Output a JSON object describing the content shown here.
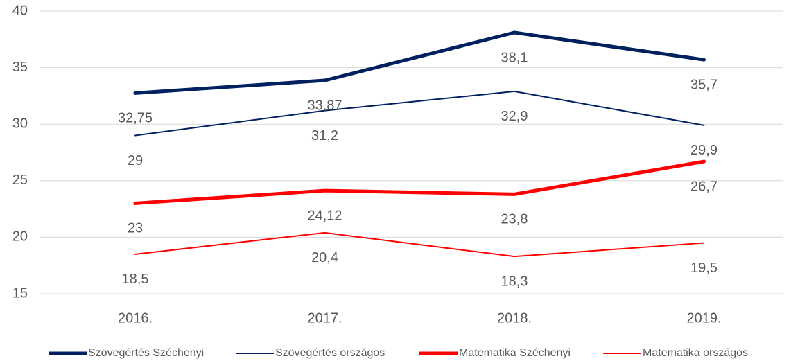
{
  "chart_data": {
    "type": "line",
    "categories": [
      "2016.",
      "2017.",
      "2018.",
      "2019."
    ],
    "series": [
      {
        "name": "Szövegértés Széchenyi",
        "color": "#002060",
        "width": 5,
        "values": [
          32.75,
          33.87,
          38.1,
          35.7
        ],
        "value_labels": [
          "32,75",
          "33,87",
          "38,1",
          "35,7"
        ]
      },
      {
        "name": "Szövegértés országos",
        "color": "#002060",
        "width": 2,
        "values": [
          29,
          31.2,
          32.9,
          29.9
        ],
        "value_labels": [
          "29",
          "31,2",
          "32,9",
          "29,9"
        ]
      },
      {
        "name": "Matematika Széchenyi",
        "color": "#ff0000",
        "width": 5,
        "values": [
          23,
          24.12,
          23.8,
          26.7
        ],
        "value_labels": [
          "23",
          "24,12",
          "23,8",
          "26,7"
        ]
      },
      {
        "name": "Matematika országos",
        "color": "#ff0000",
        "width": 2,
        "values": [
          18.5,
          20.4,
          18.3,
          19.5
        ],
        "value_labels": [
          "18,5",
          "20,4",
          "18,3",
          "19,5"
        ]
      }
    ],
    "ylim": [
      15,
      40
    ],
    "yticks": [
      15,
      20,
      25,
      30,
      35,
      40
    ],
    "grid": true,
    "legend": "bottom"
  }
}
